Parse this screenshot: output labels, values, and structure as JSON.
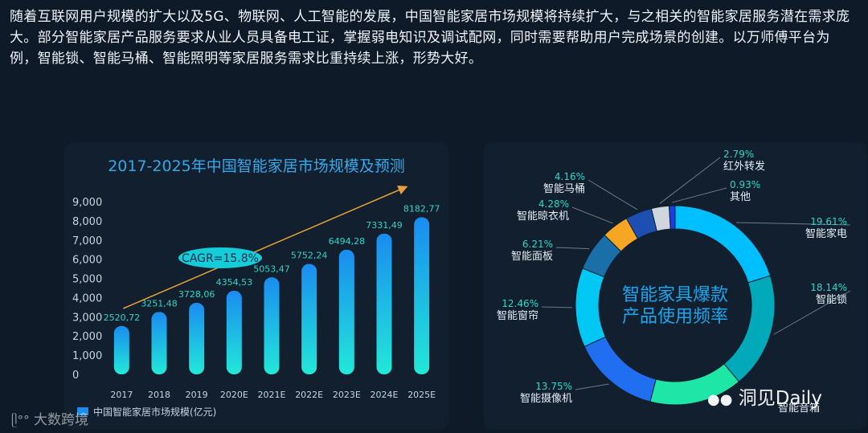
{
  "intro_text": "随着互联网用户规模的扩大以及5G、物联网、人工智能的发展，中国智能家居市场规模将持续扩大，与之相关的智能家居服务潜在需求庞大。部分智能家居产品服务要求从业人员具备电工证，掌握弱电知识及调试配网，同时需要帮助用户完成场景的创建。以万师傅平台为例，智能锁、智能马桶、智能照明等家居服务需求比重持续上涨，形势大好。",
  "watermarks": {
    "left": "大数跨境",
    "right": "洞见Daily"
  },
  "colors": {
    "bar_top": "#1a8cf0",
    "bar_bottom": "#22e8d8",
    "label": "#2ad8c8",
    "title": "#34a9ea",
    "arrow": "#e6a13c"
  },
  "chart_data": [
    {
      "type": "bar",
      "title": "2017-2025年中国智能家居市场规模及预测",
      "categories": [
        "2017",
        "2018",
        "2019",
        "2020E",
        "2021E",
        "2022E",
        "2023E",
        "2024E",
        "2025E"
      ],
      "values": [
        2520.72,
        3251.48,
        3728.06,
        4354.53,
        5053.47,
        5752.24,
        6494.28,
        7331.49,
        8182.77
      ],
      "value_labels": [
        "2520,72",
        "3251,48",
        "3728,06",
        "4354,53",
        "5053,47",
        "5752,24",
        "6494,28",
        "7331,49",
        "8182,77"
      ],
      "yticks": [
        "0",
        "1,000",
        "2,000",
        "3,000",
        "4,000",
        "5,000",
        "6,000",
        "7,000",
        "8,000",
        "9,000"
      ],
      "ylim": [
        0,
        9000
      ],
      "annotation": "CAGR=15.8%",
      "legend": "中国智能家居市场规模(亿元)",
      "grid": false
    },
    {
      "type": "pie",
      "donut": true,
      "center_text": [
        "智能家具爆款",
        "产品使用频率"
      ],
      "slices": [
        {
          "label": "智能家电",
          "value": 19.61,
          "pct": "19.61%",
          "color": "#00bfff"
        },
        {
          "label": "智能锁",
          "value": 18.14,
          "pct": "18.14%",
          "color": "#00aabb"
        },
        {
          "label": "智能音箱",
          "value": 14.66,
          "pct": "",
          "color": "#1ee6a6"
        },
        {
          "label": "智能摄像机",
          "value": 13.75,
          "pct": "13.75%",
          "color": "#1f6ff0"
        },
        {
          "label": "智能窗帘",
          "value": 12.46,
          "pct": "12.46%",
          "color": "#00c8f5"
        },
        {
          "label": "智能面板",
          "value": 6.21,
          "pct": "6.21%",
          "color": "#1a6fa8"
        },
        {
          "label": "智能晾衣机",
          "value": 4.28,
          "pct": "4.28%",
          "color": "#f5a623"
        },
        {
          "label": "智能马桶",
          "value": 4.16,
          "pct": "4.16%",
          "color": "#1d4fb0"
        },
        {
          "label": "红外转发",
          "value": 2.79,
          "pct": "2.79%",
          "color": "#cfd6de"
        },
        {
          "label": "其他",
          "value": 0.93,
          "pct": "0.93%",
          "color": "#1b3ee0"
        }
      ]
    }
  ]
}
